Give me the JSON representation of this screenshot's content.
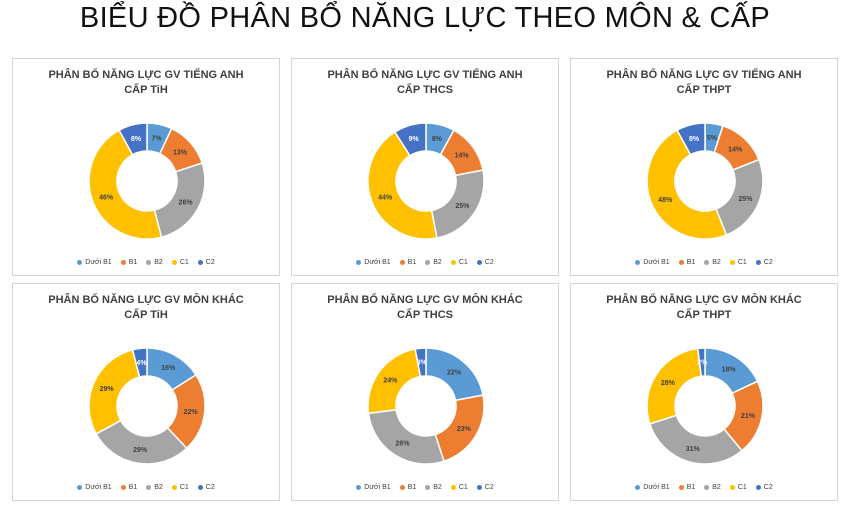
{
  "title": "BIỂU ĐỒ PHÂN BỔ NĂNG LỰC THEO MÔN & CẤP",
  "legend_labels": [
    "Dưới B1",
    "B1",
    "B2",
    "C1",
    "C2"
  ],
  "colors": [
    "#5B9BD5",
    "#ED7D31",
    "#A5A5A5",
    "#FFC000",
    "#4472C4"
  ],
  "chart_data": [
    {
      "type": "pie",
      "title_line1": "PHÂN BỔ NĂNG LỰC GV TIẾNG ANH",
      "title_line2": "CẤP TiH",
      "categories": [
        "Dưới B1",
        "B1",
        "B2",
        "C1",
        "C2"
      ],
      "values": [
        7,
        13,
        26,
        46,
        8
      ],
      "labels": [
        "7%",
        "13%",
        "26%",
        "46%",
        "8%"
      ]
    },
    {
      "type": "pie",
      "title_line1": "PHÂN BỔ NĂNG LỰC GV TIẾNG ANH",
      "title_line2": "CẤP THCS",
      "categories": [
        "Dưới B1",
        "B1",
        "B2",
        "C1",
        "C2"
      ],
      "values": [
        8,
        14,
        25,
        44,
        9
      ],
      "labels": [
        "8%",
        "14%",
        "25%",
        "44%",
        "9%"
      ]
    },
    {
      "type": "pie",
      "title_line1": "PHÂN BỔ NĂNG LỰC GV TIẾNG ANH",
      "title_line2": "CẤP THPT",
      "categories": [
        "Dưới B1",
        "B1",
        "B2",
        "C1",
        "C2"
      ],
      "values": [
        5,
        14,
        25,
        48,
        8
      ],
      "labels": [
        "5%",
        "14%",
        "25%",
        "48%",
        "8%"
      ]
    },
    {
      "type": "pie",
      "title_line1": "PHÂN BỔ NĂNG LỰC GV MÔN KHÁC",
      "title_line2": "CẤP TiH",
      "categories": [
        "Dưới B1",
        "B1",
        "B2",
        "C1",
        "C2"
      ],
      "values": [
        16,
        22,
        29,
        29,
        4
      ],
      "labels": [
        "16%",
        "22%",
        "29%",
        "29%",
        "4%"
      ]
    },
    {
      "type": "pie",
      "title_line1": "PHÂN BỔ NĂNG LỰC GV MÔN KHÁC",
      "title_line2": "CẤP THCS",
      "categories": [
        "Dưới B1",
        "B1",
        "B2",
        "C1",
        "C2"
      ],
      "values": [
        22,
        23,
        28,
        24,
        3
      ],
      "labels": [
        "22%",
        "23%",
        "28%",
        "24%",
        "3%"
      ]
    },
    {
      "type": "pie",
      "title_line1": "PHÂN BỔ NĂNG LỰC GV MÔN KHÁC",
      "title_line2": "CẤP THPT",
      "categories": [
        "Dưới B1",
        "B1",
        "B2",
        "C1",
        "C2"
      ],
      "values": [
        18,
        21,
        31,
        28,
        2
      ],
      "labels": [
        "18%",
        "21%",
        "31%",
        "28%",
        "2%"
      ]
    }
  ]
}
